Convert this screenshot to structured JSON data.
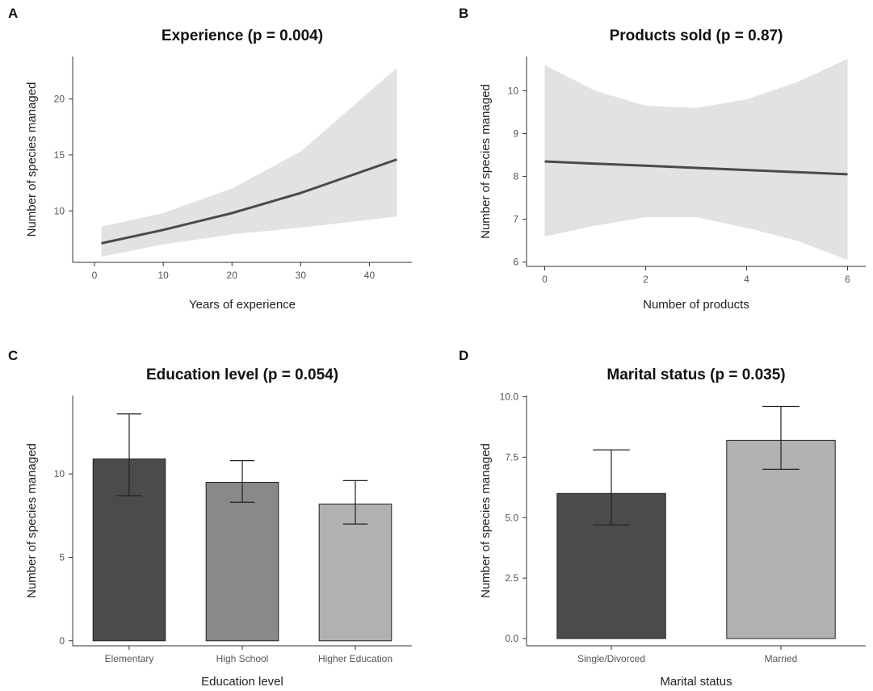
{
  "colors": {
    "line": "#4a4a4a",
    "band": "#e2e2e2",
    "bar_dark": "#4b4b4b",
    "bar_mid": "#898989",
    "bar_light": "#b1b1b1",
    "axis": "#333333"
  },
  "chart_data": [
    {
      "panel": "A",
      "type": "line",
      "title": "Experience (p = 0.004)",
      "xlabel": "Years of experience",
      "ylabel": "Number of species managed",
      "xlim": [
        -2,
        45
      ],
      "ylim": [
        5.4,
        23.8
      ],
      "xticks": [
        0,
        10,
        20,
        30,
        40
      ],
      "yticks": [
        10,
        15,
        20
      ],
      "x": [
        1,
        10,
        20,
        30,
        44
      ],
      "y": [
        7.1,
        8.3,
        9.8,
        11.6,
        14.6
      ],
      "lower": [
        5.9,
        7.0,
        7.9,
        8.5,
        9.5
      ],
      "upper": [
        8.6,
        9.8,
        12.0,
        15.3,
        22.8
      ]
    },
    {
      "panel": "B",
      "type": "line",
      "title": "Products sold (p = 0.87)",
      "xlabel": "Number of products",
      "ylabel": "Number of species managed",
      "xlim": [
        -0.2,
        6.2
      ],
      "ylim": [
        5.9,
        10.8
      ],
      "xticks": [
        0,
        2,
        4,
        6
      ],
      "yticks": [
        6,
        7,
        8,
        9,
        10
      ],
      "x": [
        0,
        1,
        2,
        3,
        4,
        5,
        6
      ],
      "y": [
        8.35,
        8.3,
        8.25,
        8.2,
        8.15,
        8.1,
        8.05
      ],
      "lower": [
        6.6,
        6.85,
        7.05,
        7.05,
        6.8,
        6.5,
        6.05
      ],
      "upper": [
        10.6,
        10.0,
        9.65,
        9.6,
        9.8,
        10.2,
        10.75
      ]
    },
    {
      "panel": "C",
      "type": "bar",
      "title": "Education level (p = 0.054)",
      "xlabel": "Education level",
      "ylabel": "Number of species managed",
      "ylim": [
        -0.3,
        14.7
      ],
      "yticks": [
        0,
        5,
        10
      ],
      "categories": [
        "Elementary",
        "High School",
        "Higher Education"
      ],
      "values": [
        10.9,
        9.5,
        8.2
      ],
      "err_low": [
        8.7,
        8.3,
        7.0
      ],
      "err_high": [
        13.6,
        10.8,
        9.6
      ]
    },
    {
      "panel": "D",
      "type": "bar",
      "title": "Marital status (p = 0.035)",
      "xlabel": "Marital status",
      "ylabel": "Number of species managed",
      "ylim": [
        -0.3,
        10.05
      ],
      "yticks": [
        0.0,
        2.5,
        5.0,
        7.5,
        10.0
      ],
      "yticklabels": [
        "0.0",
        "2.5",
        "5.0",
        "7.5",
        "10.0"
      ],
      "categories": [
        "Single/Divorced",
        "Married"
      ],
      "values": [
        6.0,
        8.2
      ],
      "err_low": [
        4.7,
        7.0
      ],
      "err_high": [
        7.8,
        9.6
      ]
    }
  ]
}
